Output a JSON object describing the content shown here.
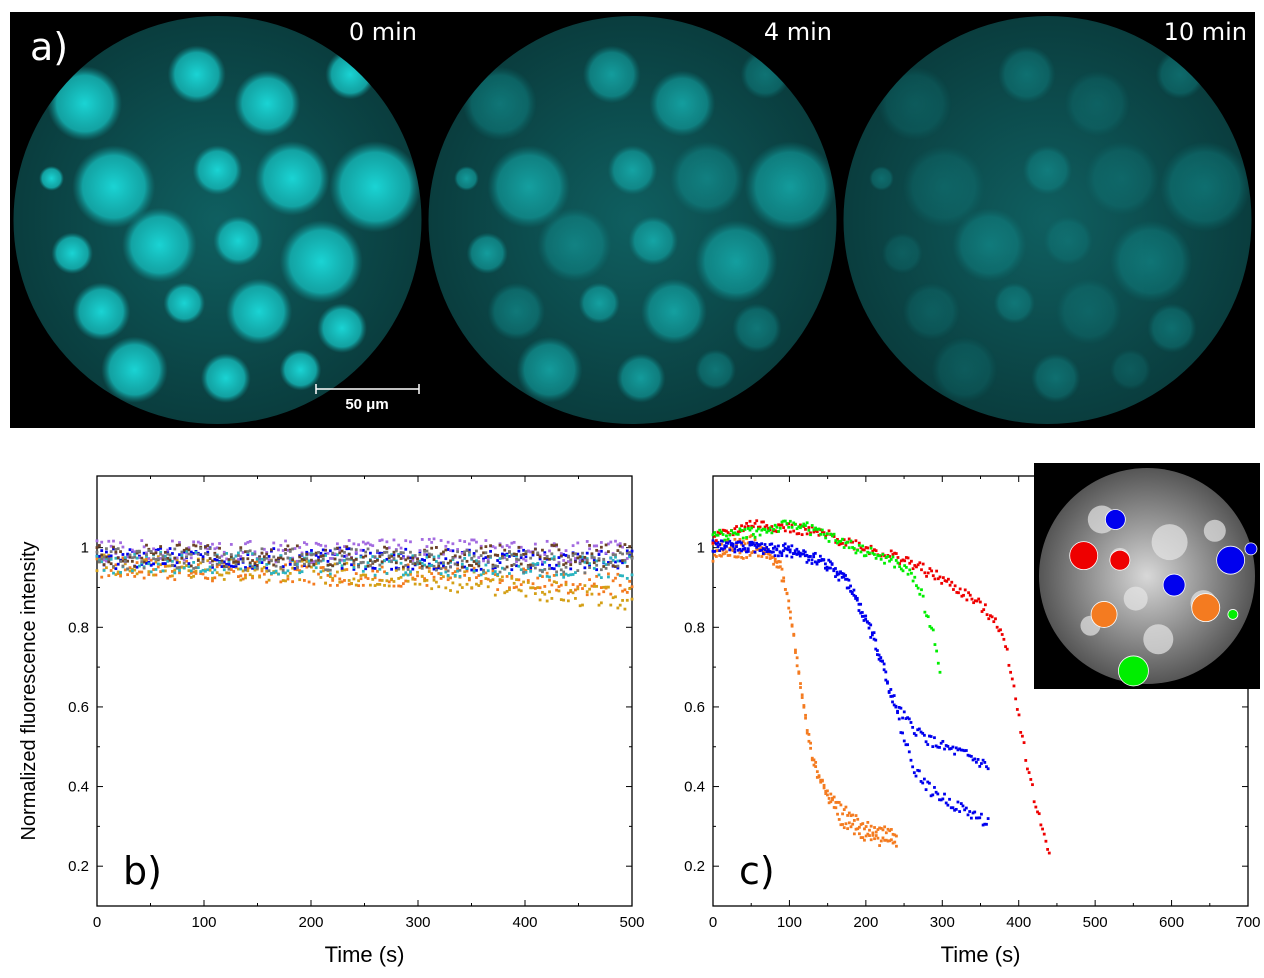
{
  "colors": {
    "cyan": "#14cccc",
    "orange": "#f47b20",
    "blue": "#0000ee",
    "red": "#ee0000",
    "green": "#00ee00",
    "brown": "#6b4226",
    "purple": "#a36be0",
    "teal": "#2ab4c0",
    "gold": "#d4a017",
    "gray": "#777777"
  },
  "panel_a": {
    "label": "a)",
    "frames": [
      {
        "time": "0 min",
        "brightness": 1.0
      },
      {
        "time": "4 min",
        "brightness": 0.72
      },
      {
        "time": "10 min",
        "brightness": 0.5
      }
    ],
    "scale_bar": "50 μm"
  },
  "chart_data": [
    {
      "panel": "b)",
      "type": "scatter",
      "xlabel": "Time (s)",
      "ylabel": "Normalized fluorescence intensity",
      "xlim": [
        0,
        500
      ],
      "ylim": [
        0.1,
        1.18
      ],
      "xticks": [
        0,
        100,
        200,
        300,
        400,
        500
      ],
      "yticks": [
        0.2,
        0.4,
        0.6,
        0.8,
        1
      ],
      "series": [
        {
          "color": "#f47b20",
          "points": [
            [
              0,
              0.95
            ],
            [
              50,
              0.95
            ],
            [
              100,
              0.94
            ],
            [
              150,
              0.94
            ],
            [
              200,
              0.935
            ],
            [
              250,
              0.93
            ],
            [
              300,
              0.93
            ],
            [
              350,
              0.925
            ],
            [
              400,
              0.92
            ],
            [
              450,
              0.91
            ],
            [
              500,
              0.905
            ]
          ]
        },
        {
          "color": "#d4a017",
          "points": [
            [
              0,
              0.96
            ],
            [
              100,
              0.95
            ],
            [
              200,
              0.94
            ],
            [
              300,
              0.925
            ],
            [
              400,
              0.9
            ],
            [
              450,
              0.88
            ],
            [
              500,
              0.87
            ]
          ]
        },
        {
          "color": "#0000ee",
          "points": [
            [
              0,
              0.97
            ],
            [
              100,
              0.975
            ],
            [
              200,
              0.975
            ],
            [
              300,
              0.97
            ],
            [
              400,
              0.97
            ],
            [
              500,
              0.97
            ]
          ]
        },
        {
          "color": "#a36be0",
          "points": [
            [
              0,
              0.99
            ],
            [
              100,
              0.99
            ],
            [
              200,
              0.99
            ],
            [
              300,
              0.995
            ],
            [
              400,
              0.99
            ],
            [
              500,
              0.99
            ]
          ]
        },
        {
          "color": "#2ab4c0",
          "points": [
            [
              0,
              0.96
            ],
            [
              100,
              0.965
            ],
            [
              200,
              0.96
            ],
            [
              300,
              0.955
            ],
            [
              400,
              0.955
            ],
            [
              500,
              0.95
            ]
          ]
        },
        {
          "color": "#6b4226",
          "points": [
            [
              0,
              0.98
            ],
            [
              100,
              0.98
            ],
            [
              200,
              0.98
            ],
            [
              300,
              0.975
            ],
            [
              400,
              0.98
            ],
            [
              500,
              0.98
            ]
          ]
        },
        {
          "color": "#777777",
          "points": [
            [
              0,
              0.975
            ],
            [
              100,
              0.97
            ],
            [
              200,
              0.97
            ],
            [
              300,
              0.97
            ],
            [
              400,
              0.965
            ],
            [
              500,
              0.965
            ]
          ]
        }
      ]
    },
    {
      "panel": "c)",
      "type": "scatter",
      "xlabel": "Time (s)",
      "ylabel": "",
      "xlim": [
        0,
        700
      ],
      "ylim": [
        0.1,
        1.18
      ],
      "xticks": [
        0,
        100,
        200,
        300,
        400,
        500,
        600,
        700
      ],
      "yticks": [
        0.2,
        0.4,
        0.6,
        0.8,
        1
      ],
      "series": [
        {
          "color": "#f47b20",
          "points": [
            [
              0,
              1.0
            ],
            [
              50,
              1.02
            ],
            [
              70,
              0.99
            ],
            [
              85,
              0.96
            ],
            [
              95,
              0.9
            ],
            [
              105,
              0.78
            ],
            [
              115,
              0.65
            ],
            [
              125,
              0.52
            ],
            [
              135,
              0.44
            ],
            [
              150,
              0.38
            ],
            [
              170,
              0.34
            ],
            [
              200,
              0.3
            ],
            [
              240,
              0.28
            ]
          ]
        },
        {
          "color": "#f47b20",
          "points": [
            [
              0,
              0.98
            ],
            [
              60,
              0.99
            ],
            [
              90,
              0.95
            ],
            [
              100,
              0.85
            ],
            [
              110,
              0.72
            ],
            [
              120,
              0.58
            ],
            [
              130,
              0.47
            ],
            [
              145,
              0.4
            ],
            [
              165,
              0.32
            ],
            [
              200,
              0.27
            ],
            [
              240,
              0.25
            ]
          ]
        },
        {
          "color": "#0000ee",
          "points": [
            [
              0,
              1.0
            ],
            [
              100,
              1.0
            ],
            [
              140,
              0.97
            ],
            [
              170,
              0.93
            ],
            [
              190,
              0.87
            ],
            [
              210,
              0.78
            ],
            [
              225,
              0.68
            ],
            [
              240,
              0.6
            ],
            [
              260,
              0.55
            ],
            [
              280,
              0.52
            ],
            [
              300,
              0.5
            ],
            [
              330,
              0.48
            ],
            [
              360,
              0.45
            ]
          ]
        },
        {
          "color": "#0000ee",
          "points": [
            [
              0,
              1.01
            ],
            [
              100,
              0.99
            ],
            [
              150,
              0.96
            ],
            [
              180,
              0.9
            ],
            [
              200,
              0.82
            ],
            [
              220,
              0.72
            ],
            [
              235,
              0.62
            ],
            [
              250,
              0.52
            ],
            [
              265,
              0.44
            ],
            [
              285,
              0.39
            ],
            [
              310,
              0.36
            ],
            [
              340,
              0.33
            ],
            [
              360,
              0.31
            ]
          ]
        },
        {
          "color": "#ee0000",
          "points": [
            [
              0,
              1.02
            ],
            [
              50,
              1.06
            ],
            [
              100,
              1.05
            ],
            [
              150,
              1.03
            ],
            [
              200,
              1.0
            ],
            [
              250,
              0.97
            ],
            [
              300,
              0.92
            ],
            [
              340,
              0.87
            ],
            [
              370,
              0.82
            ],
            [
              385,
              0.74
            ],
            [
              395,
              0.64
            ],
            [
              405,
              0.52
            ],
            [
              415,
              0.42
            ],
            [
              425,
              0.33
            ],
            [
              440,
              0.24
            ]
          ]
        },
        {
          "color": "#00ee00",
          "points": [
            [
              0,
              1.03
            ],
            [
              60,
              1.04
            ],
            [
              110,
              1.06
            ],
            [
              160,
              1.02
            ],
            [
              200,
              0.99
            ],
            [
              240,
              0.96
            ],
            [
              260,
              0.93
            ],
            [
              270,
              0.9
            ],
            [
              280,
              0.83
            ],
            [
              290,
              0.77
            ],
            [
              297,
              0.7
            ]
          ]
        }
      ]
    }
  ],
  "inset_markers": [
    {
      "color": "#0000ee"
    },
    {
      "color": "#ee0000"
    },
    {
      "color": "#ee0000"
    },
    {
      "color": "#0000ee"
    },
    {
      "color": "#0000ee"
    },
    {
      "color": "#0000ee"
    },
    {
      "color": "#f47b20"
    },
    {
      "color": "#f47b20"
    },
    {
      "color": "#00ee00"
    },
    {
      "color": "#00ee00"
    }
  ]
}
